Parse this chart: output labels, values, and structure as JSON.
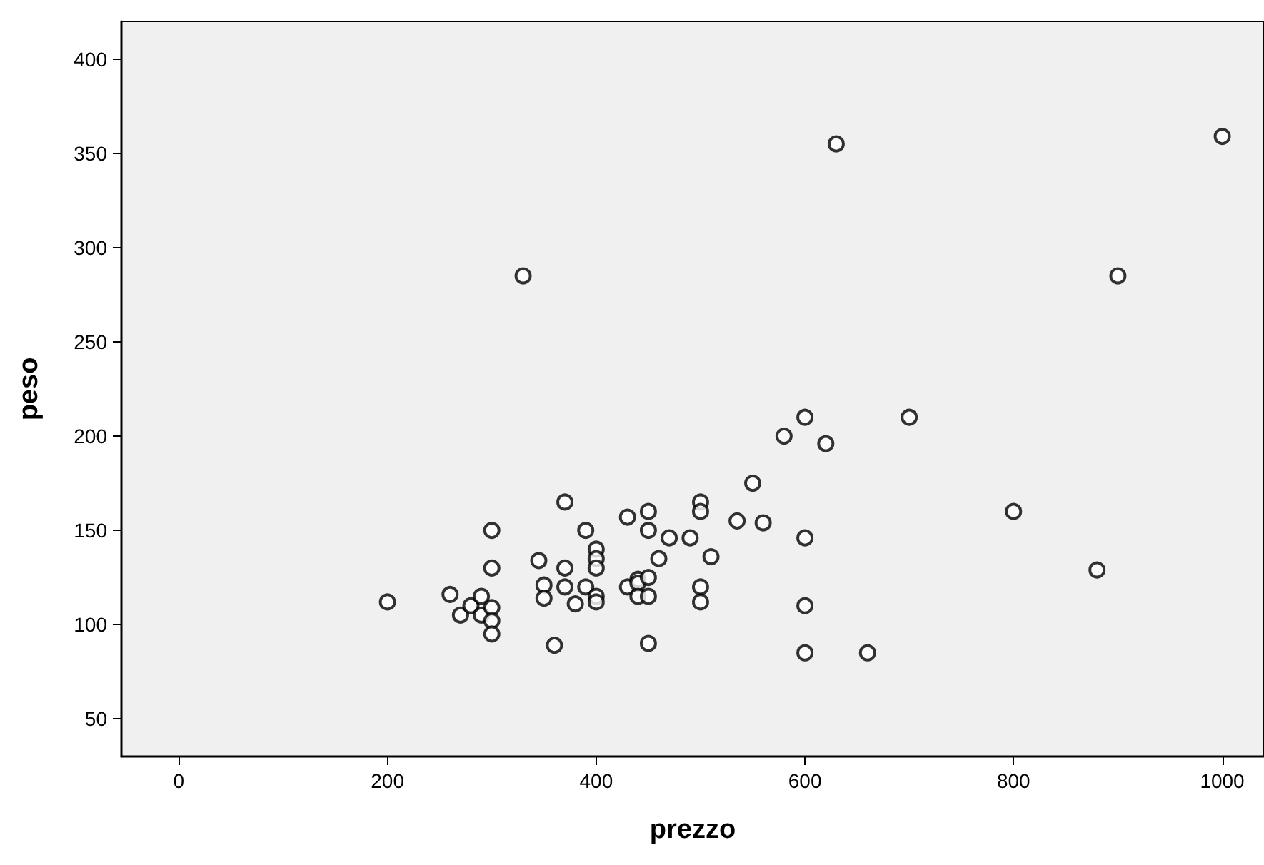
{
  "chart_data": {
    "type": "scatter",
    "xlabel": "prezzo",
    "ylabel": "peso",
    "marker": "circle",
    "xlim": [
      -55,
      1040
    ],
    "ylim": [
      30,
      420
    ],
    "xticks": [
      0,
      200,
      400,
      600,
      800,
      1000
    ],
    "yticks": [
      50,
      100,
      150,
      200,
      250,
      300,
      350,
      400
    ],
    "series": [
      {
        "color": "#000000",
        "x": [
          200,
          260,
          270,
          280,
          290,
          290,
          300,
          300,
          300,
          300,
          300,
          330,
          345,
          350,
          350,
          360,
          370,
          370,
          370,
          380,
          390,
          390,
          400,
          400,
          400,
          400,
          400,
          430,
          430,
          440,
          440,
          440,
          450,
          450,
          450,
          450,
          450,
          460,
          470,
          490,
          500,
          500,
          500,
          500,
          510,
          535,
          550,
          560,
          580,
          600,
          600,
          600,
          600,
          620,
          630,
          660,
          700,
          800,
          880,
          900,
          1000
        ],
        "values": [
          112,
          116,
          105,
          110,
          115,
          105,
          109,
          102,
          95,
          150,
          130,
          285,
          134,
          121,
          114,
          89,
          165,
          130,
          120,
          111,
          150,
          120,
          140,
          135,
          130,
          115,
          112,
          157,
          120,
          124,
          122,
          115,
          160,
          150,
          125,
          115,
          90,
          135,
          146,
          146,
          165,
          160,
          120,
          112,
          136,
          155,
          175,
          154,
          200,
          210,
          146,
          110,
          85,
          196,
          355,
          85,
          210,
          160,
          129,
          285,
          359
        ]
      }
    ]
  }
}
